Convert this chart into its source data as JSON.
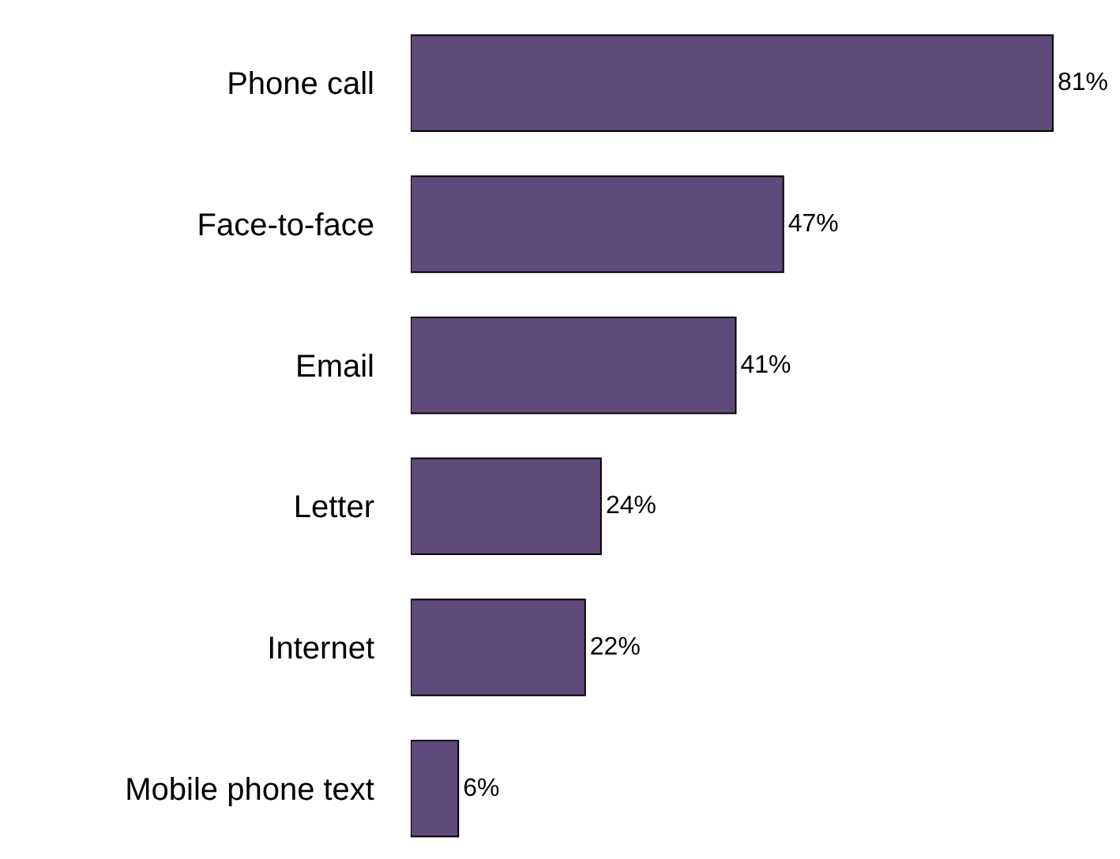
{
  "chart_data": {
    "type": "bar",
    "orientation": "horizontal",
    "categories": [
      "Phone call",
      "Face-to-face",
      "Email",
      "Letter",
      "Internet",
      "Mobile phone text"
    ],
    "values": [
      81,
      47,
      41,
      24,
      22,
      6
    ],
    "value_labels": [
      "81%",
      "47%",
      "41%",
      "24%",
      "22%",
      "6%"
    ],
    "color": "#604a7b"
  }
}
